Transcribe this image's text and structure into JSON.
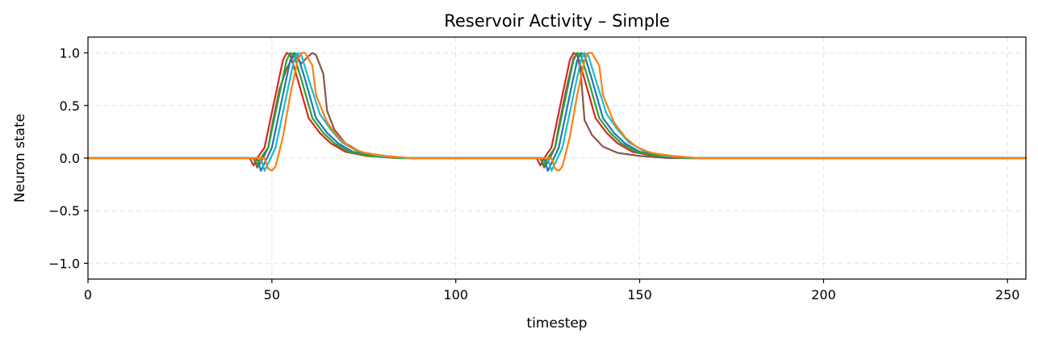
{
  "chart_data": {
    "type": "line",
    "title": "Reservoir Activity – Simple",
    "xlabel": "timestep",
    "ylabel": "Neuron state",
    "xlim": [
      0,
      255
    ],
    "ylim": [
      -1.15,
      1.15
    ],
    "xticks": [
      0,
      50,
      100,
      150,
      200,
      250
    ],
    "xtick_labels": [
      "0",
      "50",
      "100",
      "150",
      "200",
      "250"
    ],
    "yticks": [
      -1.0,
      -0.5,
      0.0,
      0.5,
      1.0
    ],
    "ytick_labels": [
      "−1.0",
      "−0.5",
      "0.0",
      "0.5",
      "1.0"
    ],
    "grid": true,
    "series": [
      {
        "color": "#d62728",
        "points": [
          [
            0,
            0
          ],
          [
            44,
            0
          ],
          [
            45,
            -0.07
          ],
          [
            46,
            0
          ],
          [
            48,
            0.1
          ],
          [
            51,
            0.6
          ],
          [
            53,
            0.93
          ],
          [
            54,
            1.0
          ],
          [
            55,
            0.98
          ],
          [
            57,
            0.75
          ],
          [
            60,
            0.38
          ],
          [
            63,
            0.24
          ],
          [
            66,
            0.14
          ],
          [
            70,
            0.06
          ],
          [
            76,
            0.02
          ],
          [
            84,
            0
          ],
          [
            122,
            0
          ],
          [
            123,
            -0.07
          ],
          [
            124,
            0
          ],
          [
            126,
            0.1
          ],
          [
            129,
            0.6
          ],
          [
            131,
            0.93
          ],
          [
            132,
            1.0
          ],
          [
            133,
            0.98
          ],
          [
            135,
            0.75
          ],
          [
            138,
            0.38
          ],
          [
            141,
            0.24
          ],
          [
            144,
            0.14
          ],
          [
            148,
            0.06
          ],
          [
            154,
            0.02
          ],
          [
            162,
            0
          ],
          [
            255,
            0
          ]
        ]
      },
      {
        "color": "#8c564b",
        "points": [
          [
            0,
            0
          ],
          [
            45,
            0
          ],
          [
            46,
            -0.09
          ],
          [
            47,
            -0.04
          ],
          [
            49,
            0.1
          ],
          [
            50,
            0.3
          ],
          [
            52,
            0.65
          ],
          [
            54,
            0.85
          ],
          [
            56,
            0.98
          ],
          [
            58,
            0.9
          ],
          [
            60,
            0.97
          ],
          [
            61,
            1.0
          ],
          [
            62,
            0.98
          ],
          [
            64,
            0.8
          ],
          [
            65,
            0.45
          ],
          [
            67,
            0.27
          ],
          [
            70,
            0.14
          ],
          [
            74,
            0.06
          ],
          [
            80,
            0.02
          ],
          [
            88,
            0
          ],
          [
            123,
            0
          ],
          [
            124,
            -0.09
          ],
          [
            125,
            -0.04
          ],
          [
            127,
            0.1
          ],
          [
            128,
            0.3
          ],
          [
            130,
            0.65
          ],
          [
            132,
            0.95
          ],
          [
            133,
            1.0
          ],
          [
            134,
            0.8
          ],
          [
            135,
            0.36
          ],
          [
            137,
            0.22
          ],
          [
            140,
            0.11
          ],
          [
            144,
            0.05
          ],
          [
            150,
            0.02
          ],
          [
            158,
            0
          ],
          [
            255,
            0
          ]
        ]
      },
      {
        "color": "#1f77b4",
        "points": [
          [
            0,
            0
          ],
          [
            46,
            0
          ],
          [
            47,
            -0.12
          ],
          [
            48,
            -0.05
          ],
          [
            50,
            0.1
          ],
          [
            53,
            0.6
          ],
          [
            55,
            0.93
          ],
          [
            56,
            1.0
          ],
          [
            57,
            0.98
          ],
          [
            59,
            0.75
          ],
          [
            62,
            0.38
          ],
          [
            65,
            0.24
          ],
          [
            68,
            0.14
          ],
          [
            72,
            0.06
          ],
          [
            78,
            0.02
          ],
          [
            86,
            0
          ],
          [
            124,
            0
          ],
          [
            125,
            -0.12
          ],
          [
            126,
            -0.05
          ],
          [
            128,
            0.1
          ],
          [
            131,
            0.6
          ],
          [
            133,
            0.93
          ],
          [
            134,
            1.0
          ],
          [
            135,
            0.98
          ],
          [
            137,
            0.75
          ],
          [
            140,
            0.38
          ],
          [
            143,
            0.24
          ],
          [
            146,
            0.14
          ],
          [
            150,
            0.06
          ],
          [
            156,
            0.02
          ],
          [
            164,
            0
          ],
          [
            255,
            0
          ]
        ]
      },
      {
        "color": "#2ca02c",
        "points": [
          [
            0,
            0
          ],
          [
            45,
            0
          ],
          [
            46,
            -0.06
          ],
          [
            47,
            0
          ],
          [
            49,
            0.1
          ],
          [
            52,
            0.6
          ],
          [
            54,
            0.93
          ],
          [
            55,
            1.0
          ],
          [
            56,
            0.98
          ],
          [
            58,
            0.75
          ],
          [
            61,
            0.38
          ],
          [
            64,
            0.24
          ],
          [
            67,
            0.14
          ],
          [
            71,
            0.06
          ],
          [
            77,
            0.02
          ],
          [
            85,
            0
          ],
          [
            123,
            0
          ],
          [
            124,
            -0.06
          ],
          [
            125,
            0
          ],
          [
            127,
            0.1
          ],
          [
            130,
            0.6
          ],
          [
            132,
            0.93
          ],
          [
            133,
            1.0
          ],
          [
            134,
            0.98
          ],
          [
            136,
            0.75
          ],
          [
            139,
            0.38
          ],
          [
            142,
            0.24
          ],
          [
            145,
            0.14
          ],
          [
            149,
            0.06
          ],
          [
            155,
            0.02
          ],
          [
            163,
            0
          ],
          [
            255,
            0
          ]
        ]
      },
      {
        "color": "#17becf",
        "points": [
          [
            0,
            0
          ],
          [
            47,
            0
          ],
          [
            48,
            -0.12
          ],
          [
            49,
            -0.05
          ],
          [
            51,
            0.1
          ],
          [
            54,
            0.6
          ],
          [
            56,
            0.93
          ],
          [
            57,
            1.0
          ],
          [
            58,
            0.98
          ],
          [
            60,
            0.75
          ],
          [
            63,
            0.42
          ],
          [
            66,
            0.27
          ],
          [
            69,
            0.15
          ],
          [
            73,
            0.07
          ],
          [
            79,
            0.02
          ],
          [
            87,
            0
          ],
          [
            125,
            0
          ],
          [
            126,
            -0.12
          ],
          [
            127,
            -0.05
          ],
          [
            129,
            0.1
          ],
          [
            132,
            0.6
          ],
          [
            134,
            0.93
          ],
          [
            135,
            1.0
          ],
          [
            136,
            0.98
          ],
          [
            138,
            0.75
          ],
          [
            141,
            0.42
          ],
          [
            144,
            0.27
          ],
          [
            147,
            0.15
          ],
          [
            151,
            0.07
          ],
          [
            157,
            0.02
          ],
          [
            165,
            0
          ],
          [
            255,
            0
          ]
        ]
      },
      {
        "color": "#ff7f0e",
        "points": [
          [
            0,
            0
          ],
          [
            48,
            0
          ],
          [
            49,
            -0.1
          ],
          [
            50,
            -0.12
          ],
          [
            51,
            -0.08
          ],
          [
            53,
            0.2
          ],
          [
            55,
            0.6
          ],
          [
            57,
            0.93
          ],
          [
            58,
            1.0
          ],
          [
            59,
            1.0
          ],
          [
            61,
            0.88
          ],
          [
            62,
            0.6
          ],
          [
            65,
            0.34
          ],
          [
            68,
            0.2
          ],
          [
            71,
            0.11
          ],
          [
            75,
            0.05
          ],
          [
            81,
            0.02
          ],
          [
            88,
            0
          ],
          [
            126,
            0
          ],
          [
            127,
            -0.1
          ],
          [
            128,
            -0.12
          ],
          [
            129,
            -0.08
          ],
          [
            131,
            0.2
          ],
          [
            133,
            0.6
          ],
          [
            135,
            0.93
          ],
          [
            136,
            1.0
          ],
          [
            137,
            1.0
          ],
          [
            139,
            0.88
          ],
          [
            140,
            0.6
          ],
          [
            143,
            0.34
          ],
          [
            146,
            0.2
          ],
          [
            149,
            0.11
          ],
          [
            153,
            0.05
          ],
          [
            159,
            0.02
          ],
          [
            166,
            0
          ],
          [
            255,
            0
          ]
        ]
      }
    ]
  }
}
